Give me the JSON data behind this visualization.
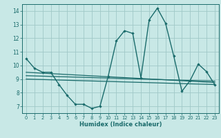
{
  "xlabel": "Humidex (Indice chaleur)",
  "background_color": "#c8e8e6",
  "grid_color": "#a0c8c8",
  "line_color": "#1a6b6b",
  "xlim": [
    -0.5,
    23.5
  ],
  "ylim": [
    6.5,
    14.5
  ],
  "xticks": [
    0,
    1,
    2,
    3,
    4,
    5,
    6,
    7,
    8,
    9,
    10,
    11,
    12,
    13,
    14,
    15,
    16,
    17,
    18,
    19,
    20,
    21,
    22,
    23
  ],
  "yticks": [
    7,
    8,
    9,
    10,
    11,
    12,
    13,
    14
  ],
  "series_main": {
    "x": [
      0,
      1,
      2,
      3,
      4,
      5,
      6,
      7,
      8,
      9,
      10,
      11,
      12,
      13,
      14,
      15,
      16,
      17,
      18,
      19,
      20,
      21,
      22,
      23
    ],
    "y": [
      10.5,
      9.8,
      9.5,
      9.5,
      8.6,
      7.8,
      7.15,
      7.15,
      6.85,
      7.0,
      9.2,
      11.8,
      12.55,
      12.35,
      9.1,
      13.35,
      14.2,
      13.1,
      10.7,
      8.1,
      8.9,
      10.1,
      9.55,
      8.6
    ]
  },
  "line1": {
    "x": [
      0,
      23
    ],
    "y": [
      9.5,
      8.75
    ]
  },
  "line2": {
    "x": [
      0,
      23
    ],
    "y": [
      9.25,
      8.85
    ]
  },
  "line3": {
    "x": [
      0,
      23
    ],
    "y": [
      9.0,
      8.6
    ]
  }
}
